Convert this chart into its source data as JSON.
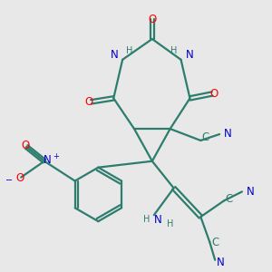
{
  "bg_color": "#e8e8e8",
  "bond_color": "#2d7d6e",
  "bond_lw": 1.6,
  "atom_colors": {
    "O": "#ff0000",
    "N": "#0000cc",
    "C": "#2d7d6e",
    "H": "#2d7d6e"
  },
  "fs": 8.5,
  "fs_small": 7.0
}
